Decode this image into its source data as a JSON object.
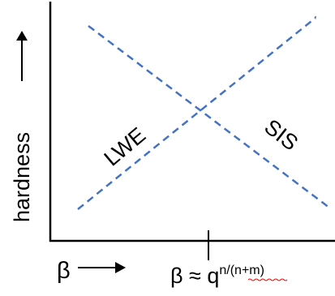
{
  "labels": {
    "y_axis": "hardness",
    "x_axis": "β",
    "curve_lwe": "LWE",
    "curve_sis": "SIS",
    "marker_main": "β ≈ q",
    "marker_exp_prefix": "n/",
    "marker_exp_paren": "(n+m)"
  },
  "colors": {
    "axis": "#000000",
    "dashed_lines": "#4472C4",
    "spell_underline": "#ff0000"
  },
  "arrow_icons": [
    "up-arrow-icon",
    "right-arrow-icon"
  ]
}
